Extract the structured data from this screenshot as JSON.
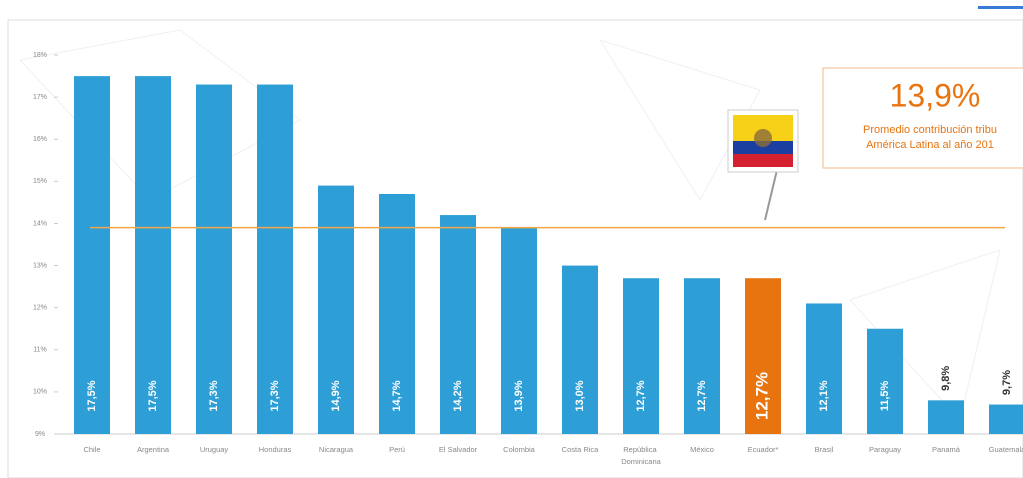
{
  "chart_data": {
    "type": "bar",
    "categories": [
      "Chile",
      "Argentina",
      "Uruguay",
      "Honduras",
      "Nicaragua",
      "Perú",
      "El Salvador",
      "Colombia",
      "Costa Rica",
      "República Dominicana",
      "México",
      "Ecuador*",
      "Brasil",
      "Paraguay",
      "Panamá",
      "Guatemala"
    ],
    "values": [
      17.5,
      17.5,
      17.3,
      17.3,
      14.9,
      14.7,
      14.2,
      13.9,
      13.0,
      12.7,
      12.7,
      12.7,
      12.1,
      11.5,
      9.8,
      9.7
    ],
    "value_labels": [
      "17,5%",
      "17,5%",
      "17,3%",
      "17,3%",
      "14,9%",
      "14,7%",
      "14,2%",
      "13,9%",
      "13,0%",
      "12,7%",
      "12,7%",
      "12,7%",
      "12,1%",
      "11,5%",
      "9,8%",
      "9,7%"
    ],
    "colors": [
      "#2e9fd6",
      "#2e9fd6",
      "#2e9fd6",
      "#2e9fd6",
      "#2e9fd6",
      "#2e9fd6",
      "#2e9fd6",
      "#2e9fd6",
      "#2e9fd6",
      "#2e9fd6",
      "#2e9fd6",
      "#e8740f",
      "#2e9fd6",
      "#2e9fd6",
      "#2e9fd6",
      "#2e9fd6"
    ],
    "ylim": [
      9,
      18.5
    ],
    "yticks": [
      {
        "value": 9,
        "label": "9%"
      },
      {
        "value": 10,
        "label": "10%"
      },
      {
        "value": 11,
        "label": "11%"
      },
      {
        "value": 12,
        "label": "12%"
      },
      {
        "value": 13,
        "label": "13%"
      },
      {
        "value": 14,
        "label": "14%"
      },
      {
        "value": 15,
        "label": "15%"
      },
      {
        "value": 16,
        "label": "16%"
      },
      {
        "value": 17,
        "label": "17%"
      },
      {
        "value": 18,
        "label": "18%"
      }
    ],
    "reference_line": {
      "value": 13.9,
      "label": "13,9%",
      "color": "#f5a545",
      "note": [
        "Promedio contribución tribu",
        "América Latina al año 201"
      ]
    }
  }
}
